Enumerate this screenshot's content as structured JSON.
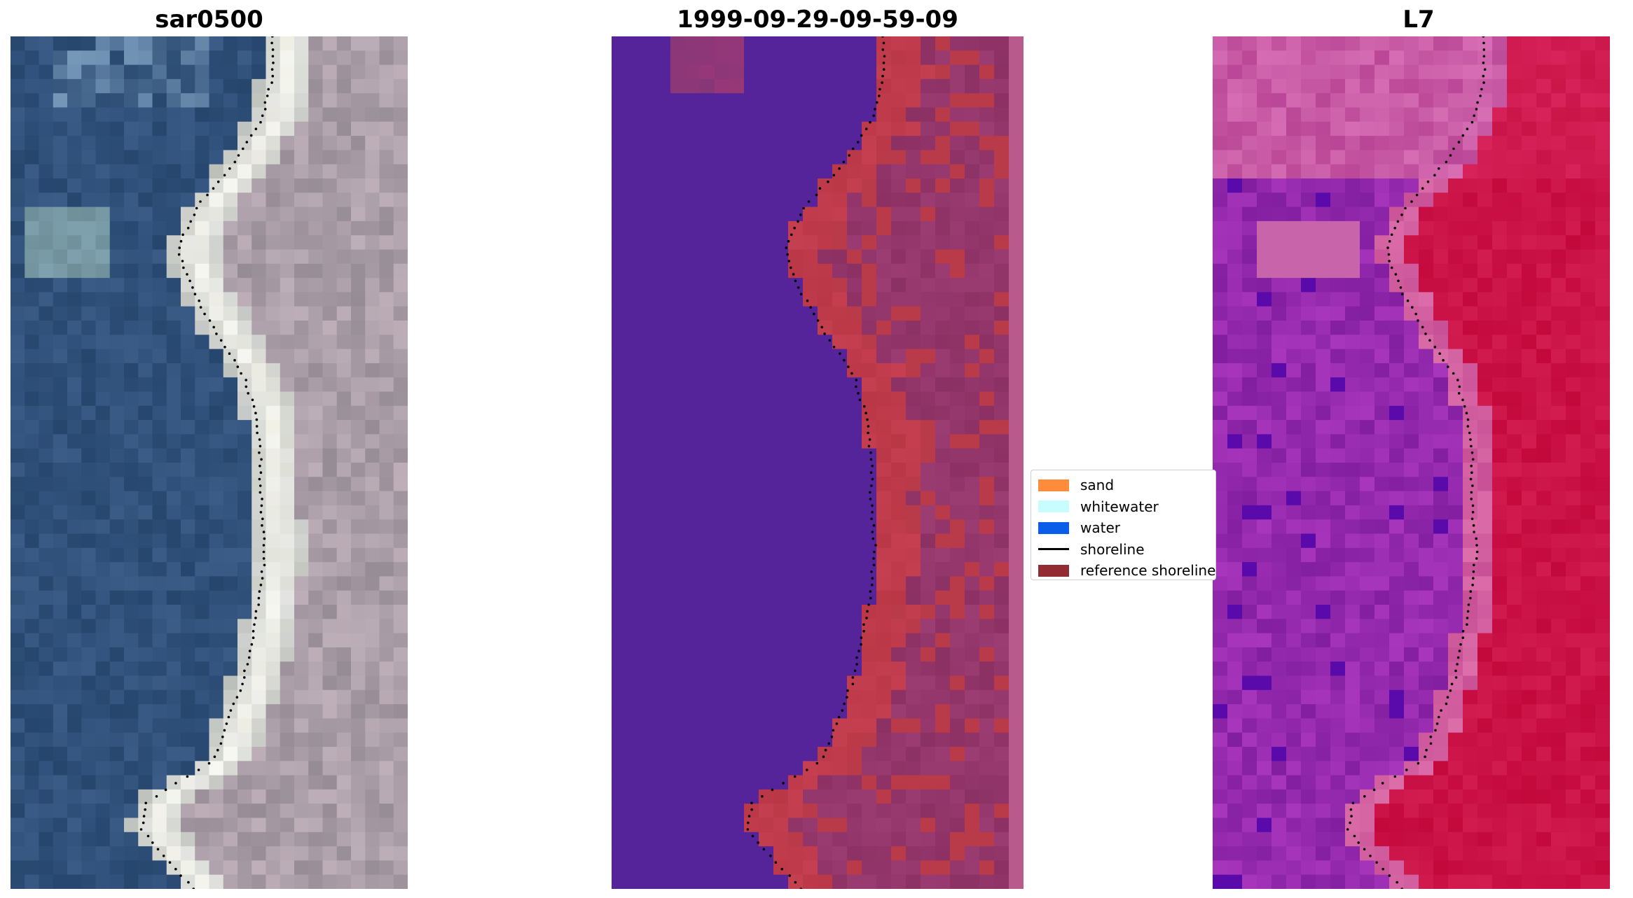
{
  "chart_data": [
    {
      "type": "heatmap",
      "title": "sar0500",
      "description_key": "rgb",
      "grid": false
    },
    {
      "type": "heatmap",
      "title": "1999-09-29-09-59-09",
      "description_key": "classified",
      "grid": false
    },
    {
      "type": "heatmap",
      "title": "L7",
      "description_key": "mndwi",
      "grid": false
    }
  ],
  "legend": {
    "placement": "center",
    "items": [
      {
        "label": "sand",
        "kind": "patch",
        "color": "#ff8c3a"
      },
      {
        "label": "whitewater",
        "kind": "patch",
        "color": "#c9fcfc"
      },
      {
        "label": "water",
        "kind": "patch",
        "color": "#0a5de8"
      },
      {
        "label": "shoreline",
        "kind": "line",
        "color": "#000000"
      },
      {
        "label": "reference shoreline",
        "kind": "patch",
        "color": "#932c32"
      }
    ]
  },
  "colors": {
    "water_class": "#55249a",
    "sand_overlay": "#bb3a4a",
    "land_overlay": "#8a3a6a",
    "edge_strip": "#b85a8c",
    "shoreline_dots": "#000000"
  }
}
